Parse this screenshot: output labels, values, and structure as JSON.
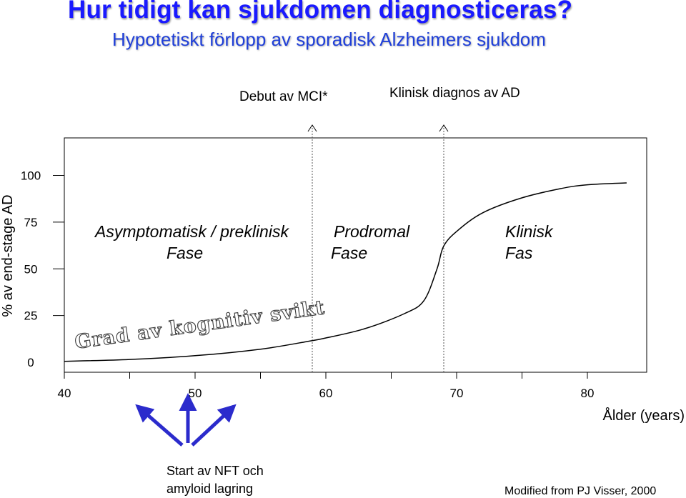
{
  "header": {
    "title": "Hur tidigt kan sjukdomen diagnosticeras?",
    "subtitle": "Hypotetiskt förlopp av sporadisk Alzheimers sjukdom"
  },
  "events": {
    "mci_label": "Debut av MCI*",
    "diagnosis_label": "Klinisk diagnos av AD"
  },
  "phases": [
    {
      "line1": "Asymptomatisk / preklinisk",
      "line2": "Fase"
    },
    {
      "line1": "Prodromal",
      "line2": "Fase"
    },
    {
      "line1": "Klinisk",
      "line2": "Fas"
    }
  ],
  "curve_label": "Grad av kognitiv svikt",
  "annotation": {
    "line1": "Start av NFT och",
    "line2": "amyloid lagring"
  },
  "credit": "Modified from PJ Visser, 2000",
  "colors": {
    "title": "#1a1aff",
    "subtitle": "#1f3fd8",
    "arrow": "#2b2bcc",
    "curve": "#000000"
  },
  "chart_data": {
    "type": "line",
    "xlabel": "Ålder (years)",
    "ylabel": "% av end-stage AD",
    "xlim": [
      40,
      83
    ],
    "ylim": [
      0,
      100
    ],
    "x_ticks": [
      "40",
      "50",
      "60",
      "70",
      "80"
    ],
    "y_ticks": [
      "0",
      "25",
      "50",
      "75",
      "100"
    ],
    "grid": false,
    "event_lines_x": [
      58.5,
      68.5
    ],
    "series": [
      {
        "x": [
          40,
          45,
          50,
          55,
          58.5,
          60,
          63,
          66,
          67.5,
          68.5,
          69,
          70,
          72,
          75,
          78,
          80,
          83
        ],
        "y": [
          0.5,
          1.5,
          3.5,
          7,
          11,
          13,
          18,
          26,
          33,
          50,
          62,
          70,
          80,
          88,
          93,
          95,
          96
        ]
      }
    ]
  }
}
